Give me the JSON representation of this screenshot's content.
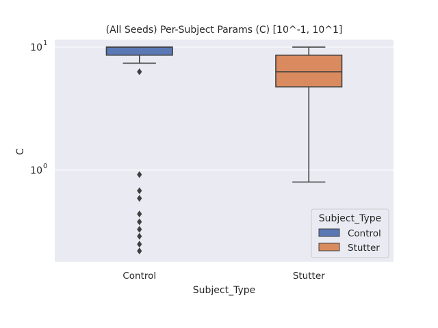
{
  "chart_data": {
    "type": "box",
    "title": "(All Seeds) Per-Subject Params (C) [10^-1, 10^1]",
    "xlabel": "Subject_Type",
    "ylabel": "C",
    "yscale": "log",
    "ylim": [
      0.18,
      11.5
    ],
    "yticks": [
      {
        "value": 1,
        "base": "10",
        "exp": "0"
      },
      {
        "value": 10,
        "base": "10",
        "exp": "1"
      }
    ],
    "categories": [
      "Control",
      "Stutter"
    ],
    "grid": true,
    "legend": {
      "title": "Subject_Type",
      "position": "lower-right",
      "entries": [
        "Control",
        "Stutter"
      ]
    },
    "boxes": [
      {
        "name": "Control",
        "color": "#5a78b4",
        "whisker_low": 7.4,
        "q1": 8.6,
        "median": 10.0,
        "q3": 10.0,
        "whisker_high": 10.0,
        "outliers": [
          6.3,
          0.92,
          0.68,
          0.59,
          0.44,
          0.38,
          0.33,
          0.29,
          0.25,
          0.22
        ]
      },
      {
        "name": "Stutter",
        "color": "#d98b5f",
        "whisker_low": 0.8,
        "q1": 4.75,
        "median": 6.3,
        "q3": 8.6,
        "whisker_high": 10.0,
        "outliers": []
      }
    ]
  }
}
